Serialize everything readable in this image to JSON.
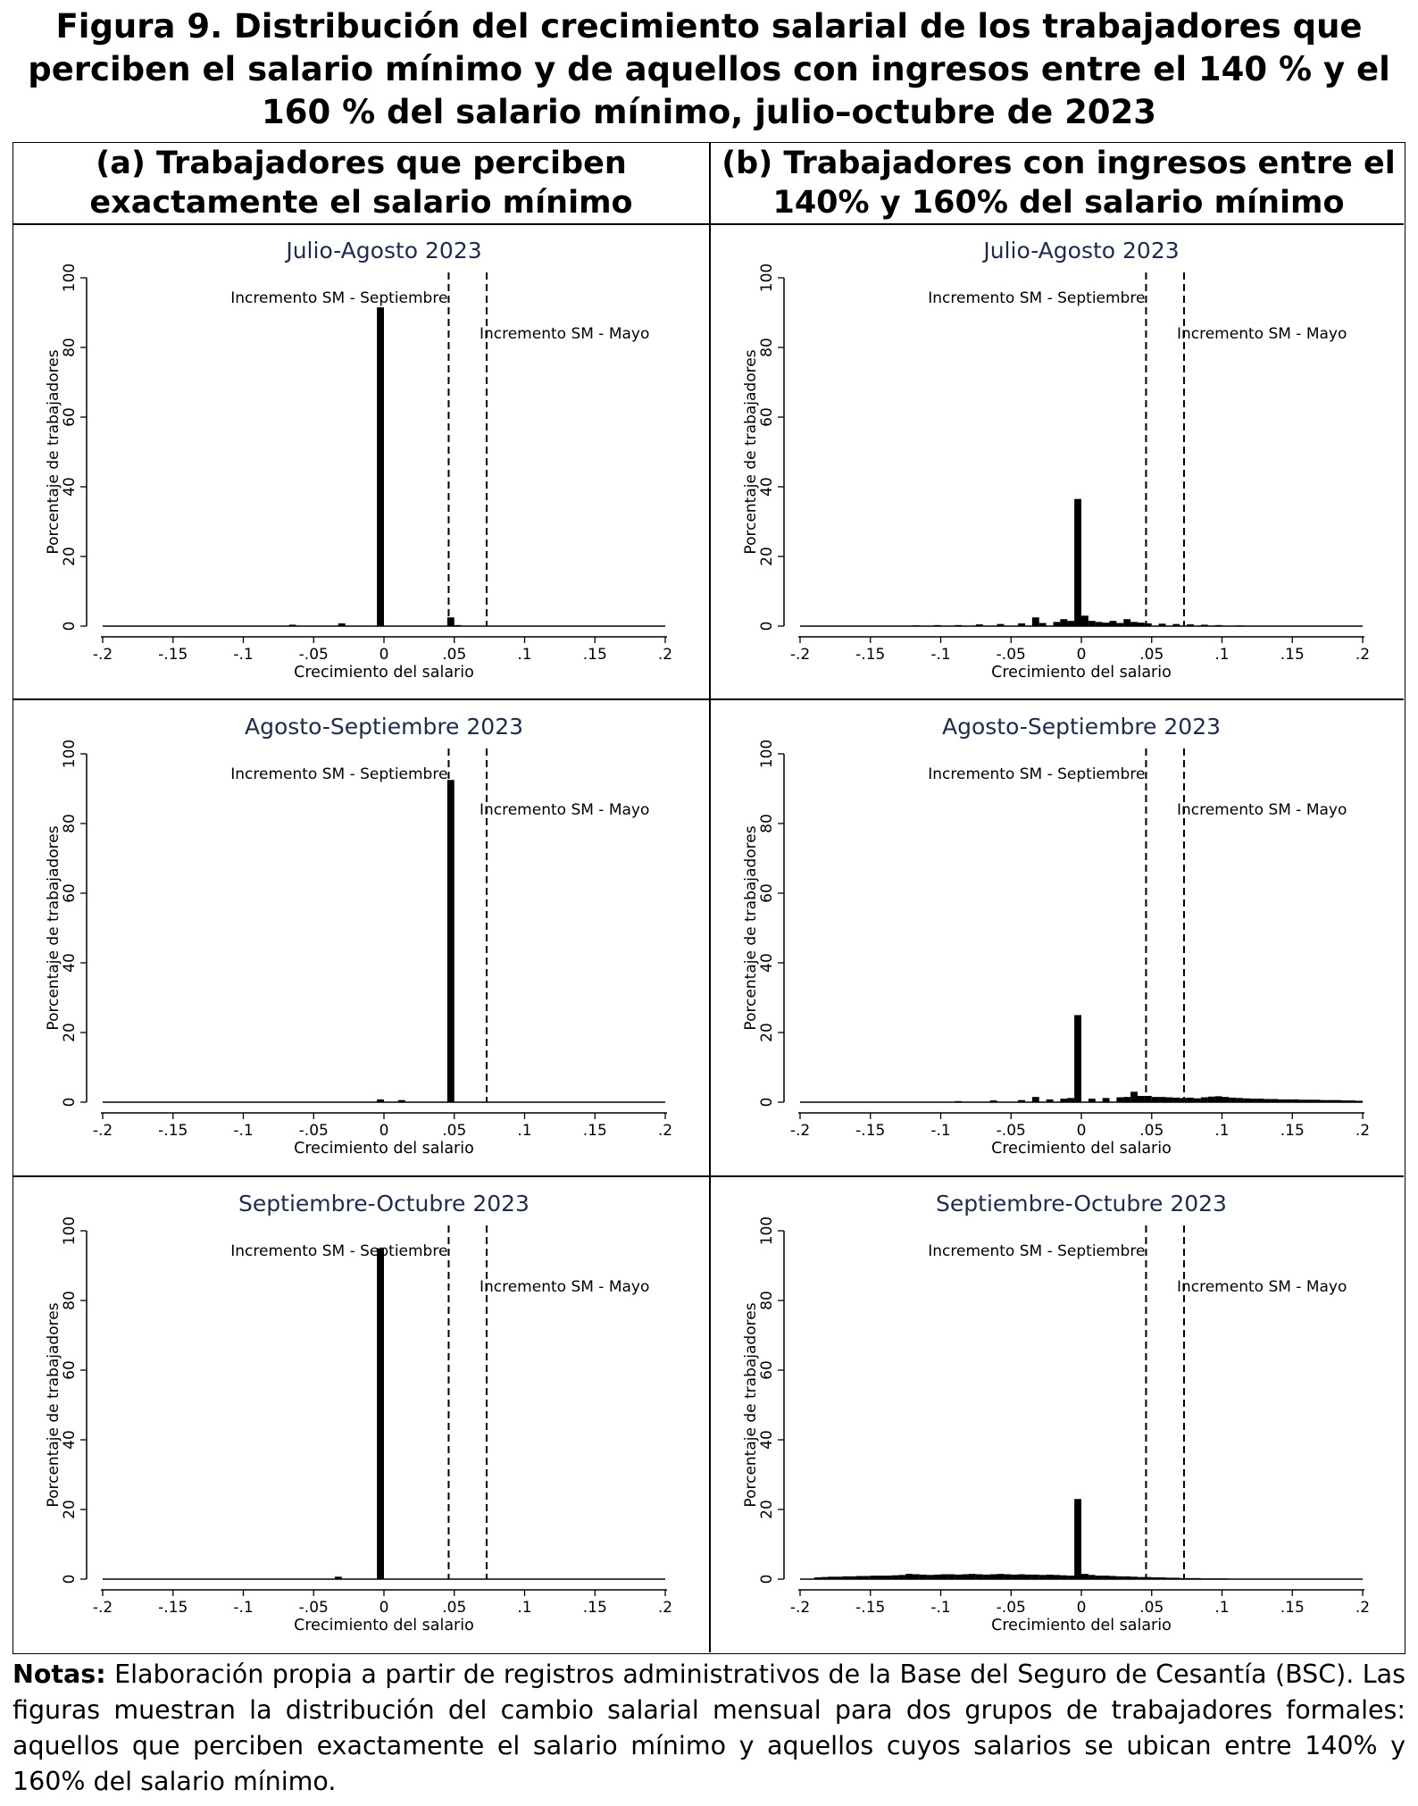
{
  "figure": {
    "title": "Figura 9.  Distribución del crecimiento salarial de los trabajadores que perciben el salario mínimo y de aquellos con ingresos entre el 140 % y el 160 % del salario mínimo, julio–octubre de 2023",
    "column_a_header": "(a) Trabajadores que perciben exactamente el salario mínimo",
    "column_b_header": "(b) Trabajadores con ingresos entre el 140% y 160% del salario mínimo"
  },
  "notes": {
    "label": "Notas:",
    "text": " Elaboración propia a partir de registros administrativos de la Base del Seguro de Cesantía (BSC). Las figuras muestran la distribución del cambio salarial mensual para dos grupos de trabajadores formales: aquellos que perciben exactamente el salario mínimo y aquellos cuyos salarios se ubican entre 140% y 160% del salario mínimo."
  },
  "colors": {
    "bars": "#000000",
    "title_text": "#1f2a4f",
    "axis": "#000000",
    "frame": "#000000"
  },
  "chart_data": [
    {
      "type": "bar",
      "id": "a1",
      "title": "Julio-Agosto 2023",
      "xlabel": "Crecimiento del salario",
      "ylabel": "Porcentaje de trabajadores",
      "xlim": [
        -0.2,
        0.2
      ],
      "ylim": [
        0,
        100
      ],
      "xticks": [
        -0.2,
        -0.15,
        -0.1,
        -0.05,
        0,
        0.05,
        0.1,
        0.15,
        0.2
      ],
      "xtick_labels": [
        "-.2",
        "-.15",
        "-.1",
        "-.05",
        "0",
        ".05",
        ".1",
        ".15",
        ".2"
      ],
      "yticks": [
        0,
        20,
        40,
        60,
        80,
        100
      ],
      "ytick_labels": [
        "0",
        "20",
        "40",
        "60",
        "80",
        "100"
      ],
      "bin_width": 0.005,
      "reference_lines": [
        {
          "x": 0.046,
          "label": "Incremento SM - Septiembre"
        },
        {
          "x": 0.073,
          "label": "Incremento SM - Mayo"
        }
      ],
      "bins": [
        [
          -0.065,
          0.4
        ],
        [
          -0.03,
          0.8
        ],
        [
          -0.0025,
          91.5
        ],
        [
          0.0475,
          2.5
        ],
        [
          0.0525,
          0.3
        ]
      ]
    },
    {
      "type": "bar",
      "id": "b1",
      "title": "Julio-Agosto 2023",
      "xlabel": "Crecimiento del salario",
      "ylabel": "Porcentaje de trabajadores",
      "xlim": [
        -0.2,
        0.2
      ],
      "ylim": [
        0,
        100
      ],
      "xticks": [
        -0.2,
        -0.15,
        -0.1,
        -0.05,
        0,
        0.05,
        0.1,
        0.15,
        0.2
      ],
      "xtick_labels": [
        "-.2",
        "-.15",
        "-.1",
        "-.05",
        "0",
        ".05",
        ".1",
        ".15",
        ".2"
      ],
      "yticks": [
        0,
        20,
        40,
        60,
        80,
        100
      ],
      "ytick_labels": [
        "0",
        "20",
        "40",
        "60",
        "80",
        "100"
      ],
      "bin_width": 0.005,
      "reference_lines": [
        {
          "x": 0.046,
          "label": "Incremento SM - Septiembre"
        },
        {
          "x": 0.073,
          "label": "Incremento SM - Mayo"
        }
      ],
      "bins": [
        [
          -0.1175,
          0.2
        ],
        [
          -0.1025,
          0.3
        ],
        [
          -0.0875,
          0.3
        ],
        [
          -0.0725,
          0.5
        ],
        [
          -0.0575,
          0.6
        ],
        [
          -0.0425,
          0.8
        ],
        [
          -0.0325,
          2.5
        ],
        [
          -0.0275,
          0.9
        ],
        [
          -0.0175,
          1.2
        ],
        [
          -0.0125,
          2.0
        ],
        [
          -0.0075,
          1.5
        ],
        [
          -0.0025,
          36.5
        ],
        [
          0.0025,
          3.0
        ],
        [
          0.0075,
          1.5
        ],
        [
          0.0125,
          1.2
        ],
        [
          0.0175,
          1.0
        ],
        [
          0.0225,
          1.5
        ],
        [
          0.0275,
          0.9
        ],
        [
          0.0325,
          2.0
        ],
        [
          0.0375,
          1.2
        ],
        [
          0.0425,
          1.0
        ],
        [
          0.0475,
          0.8
        ],
        [
          0.0575,
          0.7
        ],
        [
          0.0675,
          0.6
        ],
        [
          0.0775,
          0.5
        ],
        [
          0.0875,
          0.4
        ],
        [
          0.0975,
          0.3
        ],
        [
          0.1125,
          0.2
        ]
      ]
    },
    {
      "type": "bar",
      "id": "a2",
      "title": "Agosto-Septiembre 2023",
      "xlabel": "Crecimiento del salario",
      "ylabel": "Porcentaje de trabajadores",
      "xlim": [
        -0.2,
        0.2
      ],
      "ylim": [
        0,
        100
      ],
      "xticks": [
        -0.2,
        -0.15,
        -0.1,
        -0.05,
        0,
        0.05,
        0.1,
        0.15,
        0.2
      ],
      "xtick_labels": [
        "-.2",
        "-.15",
        "-.1",
        "-.05",
        "0",
        ".05",
        ".1",
        ".15",
        ".2"
      ],
      "yticks": [
        0,
        20,
        40,
        60,
        80,
        100
      ],
      "ytick_labels": [
        "0",
        "20",
        "40",
        "60",
        "80",
        "100"
      ],
      "bin_width": 0.005,
      "reference_lines": [
        {
          "x": 0.046,
          "label": "Incremento SM - Septiembre"
        },
        {
          "x": 0.073,
          "label": "Incremento SM - Mayo"
        }
      ],
      "bins": [
        [
          -0.0025,
          0.8
        ],
        [
          0.0125,
          0.6
        ],
        [
          0.0475,
          92.5
        ]
      ]
    },
    {
      "type": "bar",
      "id": "b2",
      "title": "Agosto-Septiembre 2023",
      "xlabel": "Crecimiento del salario",
      "ylabel": "Porcentaje de trabajadores",
      "xlim": [
        -0.2,
        0.2
      ],
      "ylim": [
        0,
        100
      ],
      "xticks": [
        -0.2,
        -0.15,
        -0.1,
        -0.05,
        0,
        0.05,
        0.1,
        0.15,
        0.2
      ],
      "xtick_labels": [
        "-.2",
        "-.15",
        "-.1",
        "-.05",
        "0",
        ".05",
        ".1",
        ".15",
        ".2"
      ],
      "yticks": [
        0,
        20,
        40,
        60,
        80,
        100
      ],
      "ytick_labels": [
        "0",
        "20",
        "40",
        "60",
        "80",
        "100"
      ],
      "bin_width": 0.005,
      "reference_lines": [
        {
          "x": 0.046,
          "label": "Incremento SM - Septiembre"
        },
        {
          "x": 0.073,
          "label": "Incremento SM - Mayo"
        }
      ],
      "bins": [
        [
          -0.0875,
          0.3
        ],
        [
          -0.0625,
          0.5
        ],
        [
          -0.0425,
          0.6
        ],
        [
          -0.0325,
          1.5
        ],
        [
          -0.0225,
          0.8
        ],
        [
          -0.0125,
          1.0
        ],
        [
          -0.0075,
          1.2
        ],
        [
          -0.0025,
          25.0
        ],
        [
          0.0075,
          1.0
        ],
        [
          0.0175,
          1.2
        ],
        [
          0.0275,
          1.4
        ],
        [
          0.0325,
          1.5
        ],
        [
          0.0375,
          3.0
        ],
        [
          0.0425,
          1.8
        ],
        [
          0.0475,
          1.8
        ],
        [
          0.0525,
          1.5
        ],
        [
          0.0575,
          1.5
        ],
        [
          0.0625,
          1.4
        ],
        [
          0.0675,
          1.3
        ],
        [
          0.0725,
          1.2
        ],
        [
          0.0775,
          1.3
        ],
        [
          0.0825,
          1.1
        ],
        [
          0.0875,
          1.4
        ],
        [
          0.0925,
          1.6
        ],
        [
          0.0975,
          1.7
        ],
        [
          0.1025,
          1.5
        ],
        [
          0.1075,
          1.3
        ],
        [
          0.1125,
          1.2
        ],
        [
          0.1175,
          1.1
        ],
        [
          0.1225,
          1.0
        ],
        [
          0.1275,
          1.0
        ],
        [
          0.1325,
          0.9
        ],
        [
          0.1375,
          0.9
        ],
        [
          0.1425,
          0.8
        ],
        [
          0.1475,
          0.8
        ],
        [
          0.1525,
          0.8
        ],
        [
          0.1575,
          0.7
        ],
        [
          0.1625,
          0.7
        ],
        [
          0.1675,
          0.7
        ],
        [
          0.1725,
          0.6
        ],
        [
          0.1775,
          0.6
        ],
        [
          0.1825,
          0.6
        ],
        [
          0.1875,
          0.5
        ],
        [
          0.1925,
          0.5
        ],
        [
          0.1975,
          0.4
        ]
      ]
    },
    {
      "type": "bar",
      "id": "a3",
      "title": "Septiembre-Octubre 2023",
      "xlabel": "Crecimiento del salario",
      "ylabel": "Porcentaje de trabajadores",
      "xlim": [
        -0.2,
        0.2
      ],
      "ylim": [
        0,
        100
      ],
      "xticks": [
        -0.2,
        -0.15,
        -0.1,
        -0.05,
        0,
        0.05,
        0.1,
        0.15,
        0.2
      ],
      "xtick_labels": [
        "-.2",
        "-.15",
        "-.1",
        "-.05",
        "0",
        ".05",
        ".1",
        ".15",
        ".2"
      ],
      "yticks": [
        0,
        20,
        40,
        60,
        80,
        100
      ],
      "ytick_labels": [
        "0",
        "20",
        "40",
        "60",
        "80",
        "100"
      ],
      "bin_width": 0.005,
      "reference_lines": [
        {
          "x": 0.046,
          "label": "Incremento SM - Septiembre"
        },
        {
          "x": 0.073,
          "label": "Incremento SM - Mayo"
        }
      ],
      "bins": [
        [
          -0.0325,
          0.7
        ],
        [
          -0.0025,
          95.0
        ]
      ]
    },
    {
      "type": "bar",
      "id": "b3",
      "title": "Septiembre-Octubre 2023",
      "xlabel": "Crecimiento del salario",
      "ylabel": "Porcentaje de trabajadores",
      "xlim": [
        -0.2,
        0.2
      ],
      "ylim": [
        0,
        100
      ],
      "xticks": [
        -0.2,
        -0.15,
        -0.1,
        -0.05,
        0,
        0.05,
        0.1,
        0.15,
        0.2
      ],
      "xtick_labels": [
        "-.2",
        "-.15",
        "-.1",
        "-.05",
        "0",
        ".05",
        ".1",
        ".15",
        ".2"
      ],
      "yticks": [
        0,
        20,
        40,
        60,
        80,
        100
      ],
      "ytick_labels": [
        "0",
        "20",
        "40",
        "60",
        "80",
        "100"
      ],
      "bin_width": 0.005,
      "reference_lines": [
        {
          "x": 0.046,
          "label": "Incremento SM - Septiembre"
        },
        {
          "x": 0.073,
          "label": "Incremento SM - Mayo"
        }
      ],
      "bins": [
        [
          -0.1875,
          0.5
        ],
        [
          -0.1825,
          0.6
        ],
        [
          -0.1775,
          0.7
        ],
        [
          -0.1725,
          0.7
        ],
        [
          -0.1675,
          0.8
        ],
        [
          -0.1625,
          0.8
        ],
        [
          -0.1575,
          0.9
        ],
        [
          -0.1525,
          0.9
        ],
        [
          -0.1475,
          1.0
        ],
        [
          -0.1425,
          1.0
        ],
        [
          -0.1375,
          1.0
        ],
        [
          -0.1325,
          1.1
        ],
        [
          -0.1275,
          1.2
        ],
        [
          -0.1225,
          1.5
        ],
        [
          -0.1175,
          1.4
        ],
        [
          -0.1125,
          1.3
        ],
        [
          -0.1075,
          1.2
        ],
        [
          -0.1025,
          1.3
        ],
        [
          -0.0975,
          1.4
        ],
        [
          -0.0925,
          1.4
        ],
        [
          -0.0875,
          1.3
        ],
        [
          -0.0825,
          1.4
        ],
        [
          -0.0775,
          1.5
        ],
        [
          -0.0725,
          1.4
        ],
        [
          -0.0675,
          1.3
        ],
        [
          -0.0625,
          1.4
        ],
        [
          -0.0575,
          1.5
        ],
        [
          -0.0525,
          1.4
        ],
        [
          -0.0475,
          1.3
        ],
        [
          -0.0425,
          1.4
        ],
        [
          -0.0375,
          1.3
        ],
        [
          -0.0325,
          1.3
        ],
        [
          -0.0275,
          1.2
        ],
        [
          -0.0225,
          1.3
        ],
        [
          -0.0175,
          1.2
        ],
        [
          -0.0125,
          1.1
        ],
        [
          -0.0075,
          1.0
        ],
        [
          -0.0025,
          23.0
        ],
        [
          0.0025,
          1.5
        ],
        [
          0.0075,
          1.2
        ],
        [
          0.0125,
          1.0
        ],
        [
          0.0175,
          1.0
        ],
        [
          0.0225,
          0.9
        ],
        [
          0.0275,
          0.8
        ],
        [
          0.0325,
          0.8
        ],
        [
          0.0375,
          0.7
        ],
        [
          0.0425,
          0.6
        ],
        [
          0.0475,
          0.6
        ],
        [
          0.0525,
          0.5
        ],
        [
          0.0575,
          0.5
        ],
        [
          0.0625,
          0.4
        ],
        [
          0.0675,
          0.4
        ],
        [
          0.0725,
          0.3
        ],
        [
          0.0775,
          0.3
        ],
        [
          0.0825,
          0.3
        ],
        [
          0.0875,
          0.2
        ],
        [
          0.0925,
          0.2
        ],
        [
          0.0975,
          0.2
        ],
        [
          0.1025,
          0.2
        ],
        [
          0.1075,
          0.1
        ]
      ]
    }
  ]
}
